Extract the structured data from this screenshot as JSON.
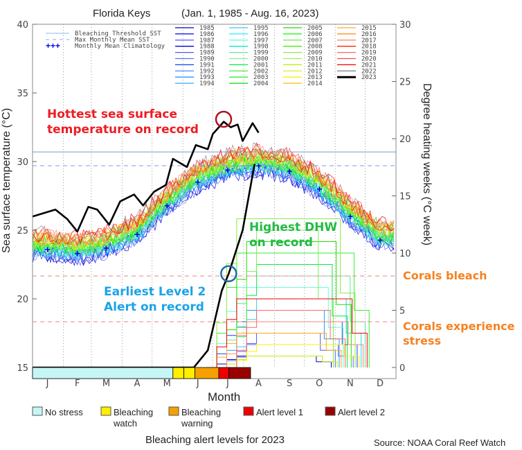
{
  "chart_data": {
    "type": "line",
    "title_location": "Florida Keys",
    "title_range": "(Jan. 1, 1985 - Aug. 16, 2023)",
    "xlabel": "Month",
    "ylabel_left": "Sea surface temperature (°C)",
    "ylabel_right": "Degree heating weeks (°C week)",
    "ylim_left": [
      15,
      40
    ],
    "ylim_right": [
      0,
      30
    ],
    "yticks_left": [
      "15",
      "20",
      "25",
      "30",
      "35",
      "40"
    ],
    "yticks_right": [
      "0",
      "5",
      "10",
      "15",
      "20",
      "25",
      "30"
    ],
    "xticks": [
      "J",
      "F",
      "M",
      "A",
      "M",
      "J",
      "J",
      "A",
      "S",
      "O",
      "N",
      "D"
    ],
    "bleaching_threshold_sst": 30.7,
    "max_monthly_mean_sst": 29.7,
    "monthly_mean_climatology": [
      23.6,
      23.3,
      23.7,
      24.7,
      26.8,
      28.5,
      29.4,
      29.7,
      29.3,
      28.0,
      26.0,
      24.3
    ],
    "sst_2023": {
      "day_of_year": [
        0,
        23,
        35,
        45,
        56,
        65,
        77,
        88,
        102,
        111,
        122,
        134,
        141,
        155,
        164,
        176,
        181,
        192,
        199,
        206,
        211,
        221,
        227
      ],
      "sst_c": [
        26.0,
        26.5,
        25.8,
        24.9,
        26.7,
        26.5,
        25.4,
        27.1,
        27.6,
        26.8,
        27.8,
        28.3,
        30.2,
        29.6,
        31.2,
        30.9,
        32.0,
        32.9,
        32.5,
        32.7,
        31.5,
        32.8,
        32.1
      ]
    },
    "dhw_2023": {
      "day_of_year": [
        0,
        162,
        176,
        190,
        197,
        211,
        223
      ],
      "dhw": [
        0,
        0,
        1.5,
        6.7,
        8.2,
        12,
        17.8
      ]
    },
    "dhw_levels": {
      "corals_bleach": 8,
      "corals_stress": 4
    },
    "legend": {
      "reference": [
        "Bleaching Threshold SST",
        "Max Monthly Mean SST",
        "Monthly Mean Climatology"
      ],
      "years": [
        {
          "name": "1985",
          "color": "#0000cc"
        },
        {
          "name": "1986",
          "color": "#0000ee"
        },
        {
          "name": "1987",
          "color": "#6666ee"
        },
        {
          "name": "1988",
          "color": "#0000dd"
        },
        {
          "name": "1989",
          "color": "#5555ee"
        },
        {
          "name": "1990",
          "color": "#5577ee"
        },
        {
          "name": "1991",
          "color": "#1144ee"
        },
        {
          "name": "1992",
          "color": "#5599ff"
        },
        {
          "name": "1993",
          "color": "#2299ff"
        },
        {
          "name": "1994",
          "color": "#33aaff"
        },
        {
          "name": "1995",
          "color": "#33ccff"
        },
        {
          "name": "1996",
          "color": "#22eeff"
        },
        {
          "name": "1997",
          "color": "#66ffdd"
        },
        {
          "name": "1998",
          "color": "#00eebb"
        },
        {
          "name": "1999",
          "color": "#55ee99"
        },
        {
          "name": "2000",
          "color": "#88ee88"
        },
        {
          "name": "2001",
          "color": "#00ee44"
        },
        {
          "name": "2002",
          "color": "#55ee55"
        },
        {
          "name": "2003",
          "color": "#33ee33"
        },
        {
          "name": "2004",
          "color": "#00dd00"
        },
        {
          "name": "2005",
          "color": "#22dd00"
        },
        {
          "name": "2006",
          "color": "#00ff00"
        },
        {
          "name": "2007",
          "color": "#77ee55"
        },
        {
          "name": "2008",
          "color": "#44ee00"
        },
        {
          "name": "2009",
          "color": "#88ee44"
        },
        {
          "name": "2010",
          "color": "#aaee44"
        },
        {
          "name": "2011",
          "color": "#bbee00"
        },
        {
          "name": "2012",
          "color": "#ddee44"
        },
        {
          "name": "2013",
          "color": "#ffee00"
        },
        {
          "name": "2014",
          "color": "#ffbb00"
        },
        {
          "name": "2015",
          "color": "#ffaa22"
        },
        {
          "name": "2016",
          "color": "#ff8800"
        },
        {
          "name": "2017",
          "color": "#ff8866"
        },
        {
          "name": "2018",
          "color": "#ff2200"
        },
        {
          "name": "2019",
          "color": "#ff6666"
        },
        {
          "name": "2020",
          "color": "#ff4444"
        },
        {
          "name": "2021",
          "color": "#ee0000"
        },
        {
          "name": "2022",
          "color": "#888888"
        },
        {
          "name": "2023",
          "color": "#000000"
        }
      ]
    },
    "alert_levels_2023": {
      "title": "Bleaching alert levels for 2023",
      "segments": [
        {
          "level": "No stress",
          "start_doy": 0,
          "end_doy": 141,
          "color": "#c6f5f5"
        },
        {
          "level": "Bleaching watch",
          "start_doy": 141,
          "end_doy": 152,
          "color": "#ffee00"
        },
        {
          "level": "Bleaching watch",
          "start_doy": 152,
          "end_doy": 163,
          "color": "#ffee00"
        },
        {
          "level": "Bleaching warning",
          "start_doy": 163,
          "end_doy": 187,
          "color": "#f5a000"
        },
        {
          "level": "Alert level 1",
          "start_doy": 187,
          "end_doy": 197,
          "color": "#ee0000"
        },
        {
          "level": "Alert level 2",
          "start_doy": 197,
          "end_doy": 219,
          "color": "#990000"
        }
      ],
      "legend": [
        {
          "label": "No stress",
          "color": "#c6f5f5"
        },
        {
          "label": "Bleaching\nwatch",
          "line1": "Bleaching",
          "line2": "watch",
          "color": "#ffee00"
        },
        {
          "label": "Bleaching\nwarning",
          "line1": "Bleaching",
          "line2": "warning",
          "color": "#f5a000"
        },
        {
          "label": "Alert level 1",
          "color": "#ee0000"
        },
        {
          "label": "Alert level 2",
          "color": "#990000"
        }
      ]
    },
    "annotations": {
      "hottest_line1": "Hottest sea surface",
      "hottest_line2": "temperature on record",
      "dhw_line1": "Highest DHW",
      "dhw_line2": "on record",
      "alert_line1": "Earliest Level 2",
      "alert_line2": "Alert on record",
      "bleach": "Corals bleach",
      "stress_line1": "Corals experience",
      "stress_line2": "stress"
    },
    "source": "Source: NOAA Coral Reef Watch"
  }
}
